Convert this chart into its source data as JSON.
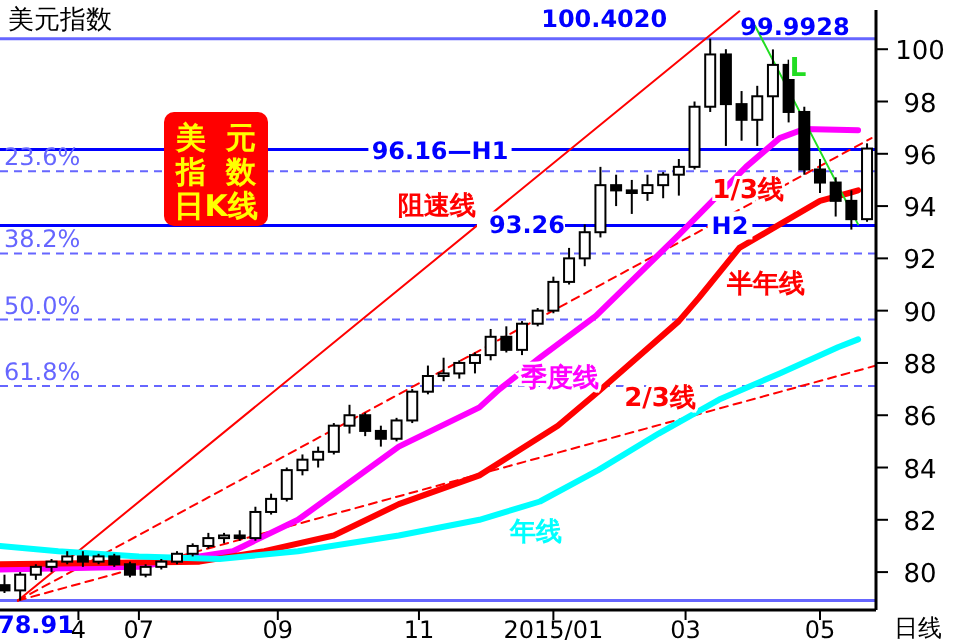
{
  "chart_data": {
    "type": "candlestick",
    "title": "美元指数",
    "xlabel": "日线",
    "color": "#000000",
    "xlim": [
      "2014-04-30",
      "2015-05-26"
    ],
    "ylim": [
      78.55,
      101.5
    ],
    "xticks": [
      {
        "value": "2014-06-04",
        "label": "4"
      },
      {
        "value": "2014-07-01",
        "label": "07"
      },
      {
        "value": "2014-09-01",
        "label": "09"
      },
      {
        "value": "2014-11-03",
        "label": "11"
      },
      {
        "value": "2015-01-02",
        "label": "2015/01"
      },
      {
        "value": "2015-03-02",
        "label": "03"
      },
      {
        "value": "2015-05-01",
        "label": "05"
      }
    ],
    "yticks": [
      80,
      82,
      84,
      86,
      88,
      90,
      92,
      94,
      96,
      98,
      100
    ],
    "x": [
      "2014-05-02",
      "2014-05-09",
      "2014-05-16",
      "2014-05-23",
      "2014-05-30",
      "2014-06-06",
      "2014-06-13",
      "2014-06-20",
      "2014-06-27",
      "2014-07-04",
      "2014-07-11",
      "2014-07-18",
      "2014-07-25",
      "2014-08-01",
      "2014-08-08",
      "2014-08-15",
      "2014-08-22",
      "2014-08-29",
      "2014-09-05",
      "2014-09-12",
      "2014-09-19",
      "2014-09-26",
      "2014-10-03",
      "2014-10-10",
      "2014-10-17",
      "2014-10-24",
      "2014-10-31",
      "2014-11-07",
      "2014-11-14",
      "2014-11-21",
      "2014-11-28",
      "2014-12-05",
      "2014-12-12",
      "2014-12-19",
      "2014-12-26",
      "2015-01-02",
      "2015-01-09",
      "2015-01-16",
      "2015-01-23",
      "2015-01-30",
      "2015-02-06",
      "2015-02-13",
      "2015-02-20",
      "2015-02-27",
      "2015-03-06",
      "2015-03-13",
      "2015-03-20",
      "2015-03-27",
      "2015-04-03",
      "2015-04-10",
      "2015-04-17",
      "2015-04-24",
      "2015-05-01",
      "2015-05-08",
      "2015-05-15",
      "2015-05-22"
    ],
    "ohlc": [
      [
        79.5,
        79.9,
        79.2,
        79.3
      ],
      [
        79.3,
        80.0,
        78.91,
        79.9
      ],
      [
        79.9,
        80.3,
        79.7,
        80.2
      ],
      [
        80.2,
        80.5,
        80.0,
        80.4
      ],
      [
        80.4,
        80.8,
        80.3,
        80.6
      ],
      [
        80.6,
        80.8,
        80.2,
        80.4
      ],
      [
        80.4,
        80.7,
        80.3,
        80.6
      ],
      [
        80.6,
        80.7,
        80.2,
        80.3
      ],
      [
        80.3,
        80.4,
        79.8,
        79.9
      ],
      [
        79.9,
        80.3,
        79.8,
        80.2
      ],
      [
        80.2,
        80.5,
        80.1,
        80.4
      ],
      [
        80.4,
        80.8,
        80.3,
        80.7
      ],
      [
        80.7,
        81.1,
        80.6,
        81.0
      ],
      [
        81.0,
        81.5,
        80.9,
        81.3
      ],
      [
        81.3,
        81.5,
        81.1,
        81.4
      ],
      [
        81.4,
        81.6,
        81.2,
        81.3
      ],
      [
        81.3,
        82.5,
        81.2,
        82.3
      ],
      [
        82.3,
        83.0,
        82.2,
        82.8
      ],
      [
        82.8,
        84.0,
        82.7,
        83.9
      ],
      [
        83.9,
        84.5,
        83.7,
        84.3
      ],
      [
        84.3,
        84.8,
        84.0,
        84.6
      ],
      [
        84.6,
        85.7,
        84.5,
        85.6
      ],
      [
        85.6,
        86.4,
        85.3,
        86.0
      ],
      [
        86.0,
        86.1,
        85.2,
        85.4
      ],
      [
        85.4,
        85.6,
        84.8,
        85.1
      ],
      [
        85.1,
        85.9,
        85.0,
        85.8
      ],
      [
        85.8,
        87.0,
        85.7,
        86.9
      ],
      [
        86.9,
        87.9,
        86.8,
        87.5
      ],
      [
        87.5,
        88.2,
        87.3,
        87.6
      ],
      [
        87.6,
        88.1,
        87.4,
        88.0
      ],
      [
        88.0,
        88.4,
        87.6,
        88.3
      ],
      [
        88.3,
        89.3,
        88.1,
        89.0
      ],
      [
        89.0,
        89.4,
        88.4,
        88.5
      ],
      [
        88.5,
        89.6,
        88.3,
        89.5
      ],
      [
        89.5,
        90.1,
        89.4,
        90.0
      ],
      [
        90.0,
        91.3,
        89.9,
        91.1
      ],
      [
        91.1,
        92.4,
        91.0,
        92.0
      ],
      [
        92.0,
        93.3,
        91.7,
        93.0
      ],
      [
        93.0,
        95.5,
        92.8,
        94.8
      ],
      [
        94.8,
        95.2,
        94.0,
        94.6
      ],
      [
        94.6,
        95.0,
        93.7,
        94.5
      ],
      [
        94.5,
        95.2,
        94.2,
        94.8
      ],
      [
        94.8,
        95.3,
        94.3,
        95.2
      ],
      [
        95.2,
        95.8,
        94.4,
        95.5
      ],
      [
        95.5,
        98.0,
        95.4,
        97.8
      ],
      [
        97.8,
        100.402,
        97.6,
        99.8
      ],
      [
        99.8,
        100.0,
        96.3,
        97.9
      ],
      [
        97.9,
        98.4,
        96.5,
        97.3
      ],
      [
        97.3,
        98.6,
        96.3,
        98.2
      ],
      [
        98.2,
        99.9928,
        96.6,
        99.4
      ],
      [
        99.4,
        99.6,
        97.2,
        97.6
      ],
      [
        97.6,
        97.8,
        95.2,
        95.4
      ],
      [
        95.4,
        95.8,
        94.5,
        94.9
      ],
      [
        94.9,
        95.1,
        93.6,
        94.2
      ],
      [
        94.2,
        94.6,
        93.1,
        93.5
      ],
      [
        93.5,
        96.4,
        93.4,
        96.2
      ]
    ],
    "series": [
      {
        "type": "line",
        "name": "阻速线",
        "color": "#ff0000",
        "line_style": "solid",
        "x": [
          "2014-05-08",
          "2015-03-26"
        ],
        "values": [
          78.91,
          101.45
        ]
      },
      {
        "type": "line",
        "name": "1/3线",
        "color": "#ff0000",
        "line_style": "dashed",
        "x": [
          "2014-05-08",
          "2015-05-24"
        ],
        "values": [
          78.91,
          96.6
        ]
      },
      {
        "type": "line",
        "name": "2/3线",
        "color": "#ff0000",
        "line_style": "dashed",
        "x": [
          "2014-05-08",
          "2015-05-26"
        ],
        "values": [
          78.91,
          87.9
        ]
      },
      {
        "type": "line",
        "name": "季度线",
        "color": "#ff00ff",
        "line_style": "solid",
        "x": [
          "2014-04-30",
          "2014-07-01",
          "2014-07-28",
          "2014-08-12",
          "2014-09-10",
          "2014-10-25",
          "2014-11-30",
          "2014-12-09",
          "2014-12-27",
          "2015-01-21",
          "2015-02-27",
          "2015-03-29",
          "2015-04-13",
          "2015-04-24",
          "2015-05-18"
        ],
        "values": [
          80.1,
          80.2,
          80.6,
          80.8,
          82.0,
          84.8,
          86.3,
          87.0,
          88.2,
          89.8,
          92.9,
          95.5,
          96.6,
          96.95,
          96.9
        ]
      },
      {
        "type": "line",
        "name": "半年线",
        "color": "#ff0000",
        "line_style": "solid",
        "x": [
          "2014-04-30",
          "2014-07-28",
          "2014-08-26",
          "2014-09-26",
          "2014-10-25",
          "2014-11-30",
          "2015-01-04",
          "2015-01-22",
          "2015-02-27",
          "2015-03-08",
          "2015-03-26",
          "2015-04-13",
          "2015-05-01",
          "2015-05-14",
          "2015-05-18"
        ],
        "values": [
          80.3,
          80.4,
          80.8,
          81.4,
          82.6,
          83.7,
          85.6,
          86.9,
          89.6,
          90.5,
          92.4,
          93.3,
          94.2,
          94.5,
          94.6
        ]
      },
      {
        "type": "line",
        "name": "年线",
        "color": "#00ffff",
        "line_style": "solid",
        "x": [
          "2014-04-30",
          "2014-05-26",
          "2014-07-01",
          "2014-08-06",
          "2014-09-10",
          "2014-10-25",
          "2014-11-30",
          "2014-12-27",
          "2015-01-22",
          "2015-02-18",
          "2015-03-17",
          "2015-04-13",
          "2015-05-09",
          "2015-05-18"
        ],
        "values": [
          81.0,
          80.8,
          80.6,
          80.5,
          80.8,
          81.4,
          82.0,
          82.7,
          83.9,
          85.3,
          86.6,
          87.6,
          88.6,
          88.9
        ]
      },
      {
        "type": "line",
        "name": "L",
        "color": "#22dd22",
        "line_style": "solid",
        "x": [
          "2015-04-02",
          "2015-05-18"
        ],
        "values": [
          100.9,
          93.3
        ]
      }
    ],
    "ref_lines": [
      {
        "axis": "y",
        "value": 100.402,
        "color": "#6666ff",
        "line_style": "solid"
      },
      {
        "axis": "y",
        "value": 96.16,
        "label": "96.16—H1",
        "color": "#0000ff",
        "line_style": "solid"
      },
      {
        "axis": "y",
        "value": 93.26,
        "label": "H2",
        "color": "#0000ff",
        "line_style": "solid"
      },
      {
        "axis": "y",
        "value": 95.33,
        "color": "#6666ff",
        "line_style": "dashed"
      },
      {
        "axis": "y",
        "value": 92.19,
        "color": "#6666ff",
        "line_style": "dashed"
      },
      {
        "axis": "y",
        "value": 89.66,
        "color": "#6666ff",
        "line_style": "dashed"
      },
      {
        "axis": "y",
        "value": 87.12,
        "color": "#6666ff",
        "line_style": "dashed"
      },
      {
        "axis": "y",
        "value": 78.91,
        "color": "#6666ff",
        "line_style": "solid"
      }
    ],
    "annotations": [
      "美  元",
      "指  数",
      "日K线",
      {
        "text": "100.4020",
        "x": "2015-03-13",
        "y": 100.402
      },
      {
        "text": "99.9928",
        "x": "2015-04-10",
        "y": 99.9928
      },
      {
        "text": "93.26",
        "x": "2015-01-17",
        "y": 93.26
      },
      {
        "text": "78.91",
        "x": "2014-05-08",
        "y": 78.91
      },
      {
        "text": "23.6%",
        "x": "2014-04-30",
        "y": 95.33
      },
      {
        "text": "38.2%",
        "x": "2014-04-30",
        "y": 92.19
      },
      {
        "text": "50.0%",
        "x": "2014-04-30",
        "y": 89.66
      },
      {
        "text": "61.8%",
        "x": "2014-04-30",
        "y": 87.12
      }
    ]
  }
}
